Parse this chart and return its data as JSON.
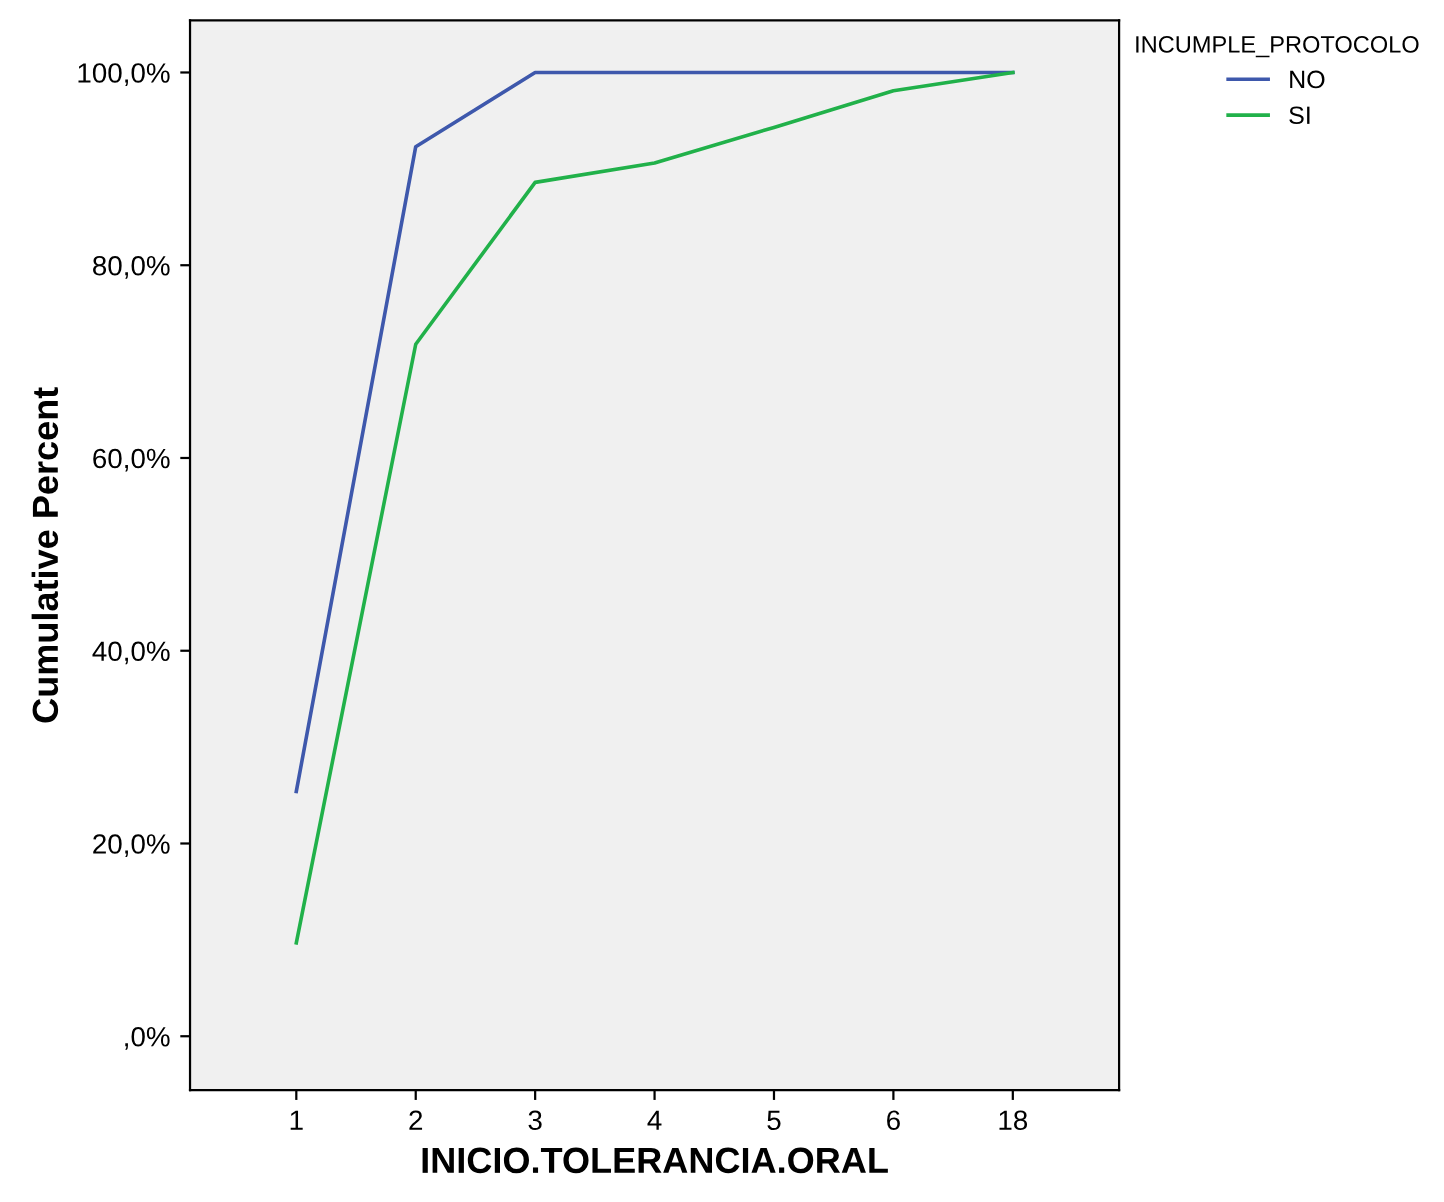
{
  "chart_data": {
    "type": "line",
    "xlabel": "INICIO.TOLERANCIA.ORAL",
    "ylabel": "Cumulative Percent",
    "legend_title": "INCUMPLE_PROTOCOLO",
    "legend": "top right",
    "grid": false,
    "marker": "none",
    "line_style": "solid",
    "categories": [
      "1",
      "2",
      "3",
      "4",
      "5",
      "6",
      "18"
    ],
    "ylim": [
      -5.6,
      105.4
    ],
    "yticks": [
      {
        "value": 0,
        "label": ",0%"
      },
      {
        "value": 20,
        "label": "20,0%"
      },
      {
        "value": 40,
        "label": "40,0%"
      },
      {
        "value": 60,
        "label": "60,0%"
      },
      {
        "value": 80,
        "label": "80,0%"
      },
      {
        "value": 100,
        "label": "100,0%"
      }
    ],
    "series": [
      {
        "name": "NO",
        "color": "#3e58ac",
        "values": [
          25.4,
          92.3,
          100,
          100,
          100,
          100,
          100
        ]
      },
      {
        "name": "SI",
        "color": "#21b14a",
        "values": [
          9.7,
          71.8,
          88.6,
          90.6,
          94.3,
          98.1,
          100
        ]
      }
    ]
  }
}
